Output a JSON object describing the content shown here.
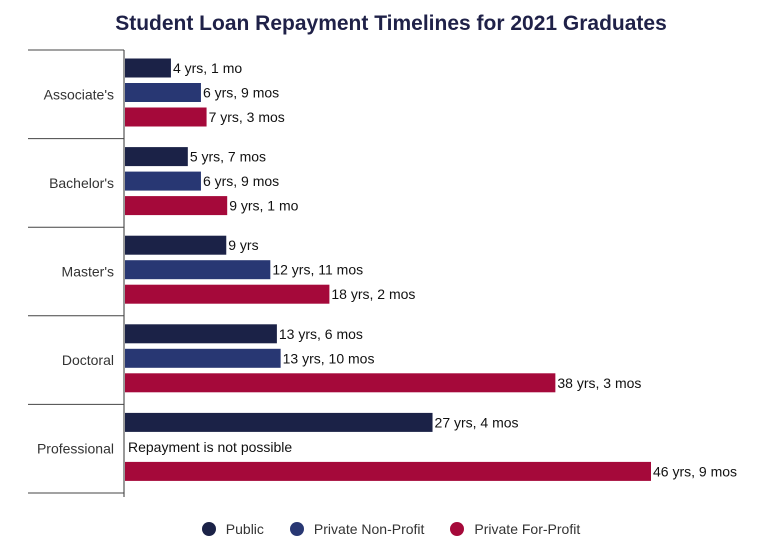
{
  "chart_data": {
    "type": "bar",
    "orientation": "horizontal",
    "title": "Student Loan Repayment Timelines for 2021 Graduates",
    "xlabel": "",
    "ylabel": "",
    "unit": "years",
    "categories": [
      "Associate's",
      "Bachelor's",
      "Master's",
      "Doctoral",
      "Professional"
    ],
    "series": [
      {
        "name": "Public",
        "color": "#1b2247",
        "values": [
          4.083,
          5.583,
          9.0,
          13.5,
          27.333
        ],
        "labels": [
          "4 yrs, 1 mo",
          "5 yrs, 7 mos",
          "9 yrs",
          "13 yrs, 6 mos",
          "27 yrs, 4 mos"
        ]
      },
      {
        "name": "Private Non-Profit",
        "color": "#283773",
        "values": [
          6.75,
          6.75,
          12.917,
          13.833,
          null
        ],
        "labels": [
          "6 yrs, 9 mos",
          "6 yrs, 9 mos",
          "12 yrs, 11 mos",
          "13 yrs, 10 mos",
          "Repayment is not possible"
        ]
      },
      {
        "name": "Private For-Profit",
        "color": "#a5093a",
        "values": [
          7.25,
          9.083,
          18.167,
          38.25,
          46.75
        ],
        "labels": [
          "7 yrs, 3 mos",
          "9 yrs, 1 mo",
          "18 yrs, 2 mos",
          "38 yrs, 3 mos",
          "46 yrs, 9 mos"
        ]
      }
    ],
    "xlim": [
      0,
      50
    ],
    "grid": false,
    "legend_position": "bottom"
  }
}
